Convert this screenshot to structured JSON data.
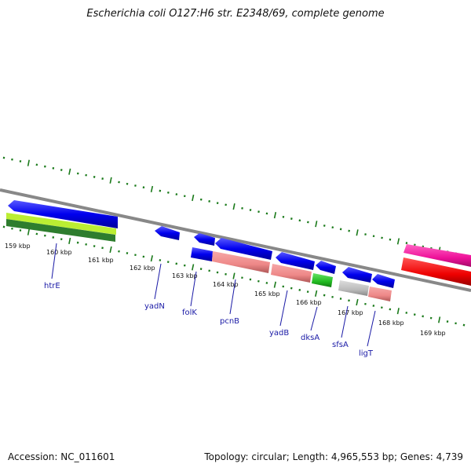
{
  "title": "Escherichia coli O127:H6 str. E2348/69, complete genome",
  "footer": {
    "accession": "Accession: NC_011601",
    "summary": "Topology: circular; Length: 4,965,553 bp; Genes: 4,739"
  },
  "kbp_labels": [
    "159 kbp",
    "160 kbp",
    "161 kbp",
    "162 kbp",
    "163 kbp",
    "164 kbp",
    "165 kbp",
    "166 kbp",
    "167 kbp",
    "168 kbp",
    "169 kbp"
  ],
  "gene_labels": [
    "htrE",
    "yadN",
    "folK",
    "pcnB",
    "yadB",
    "dksA",
    "sfsA",
    "ligT"
  ],
  "colors": {
    "forward_gene": "#0000ee",
    "cds_salmon": "#ee8888",
    "gene_green": "#22bb22",
    "gene_grey": "#bbbbbb",
    "htre_lime": "#bbee33",
    "htre_dark_green": "#2e7d2e",
    "magenta": "#ee1199",
    "red": "#ee0000",
    "tick_green": "#1a7a1a",
    "backbone": "#888888",
    "label_blue": "#1a1aa6"
  }
}
